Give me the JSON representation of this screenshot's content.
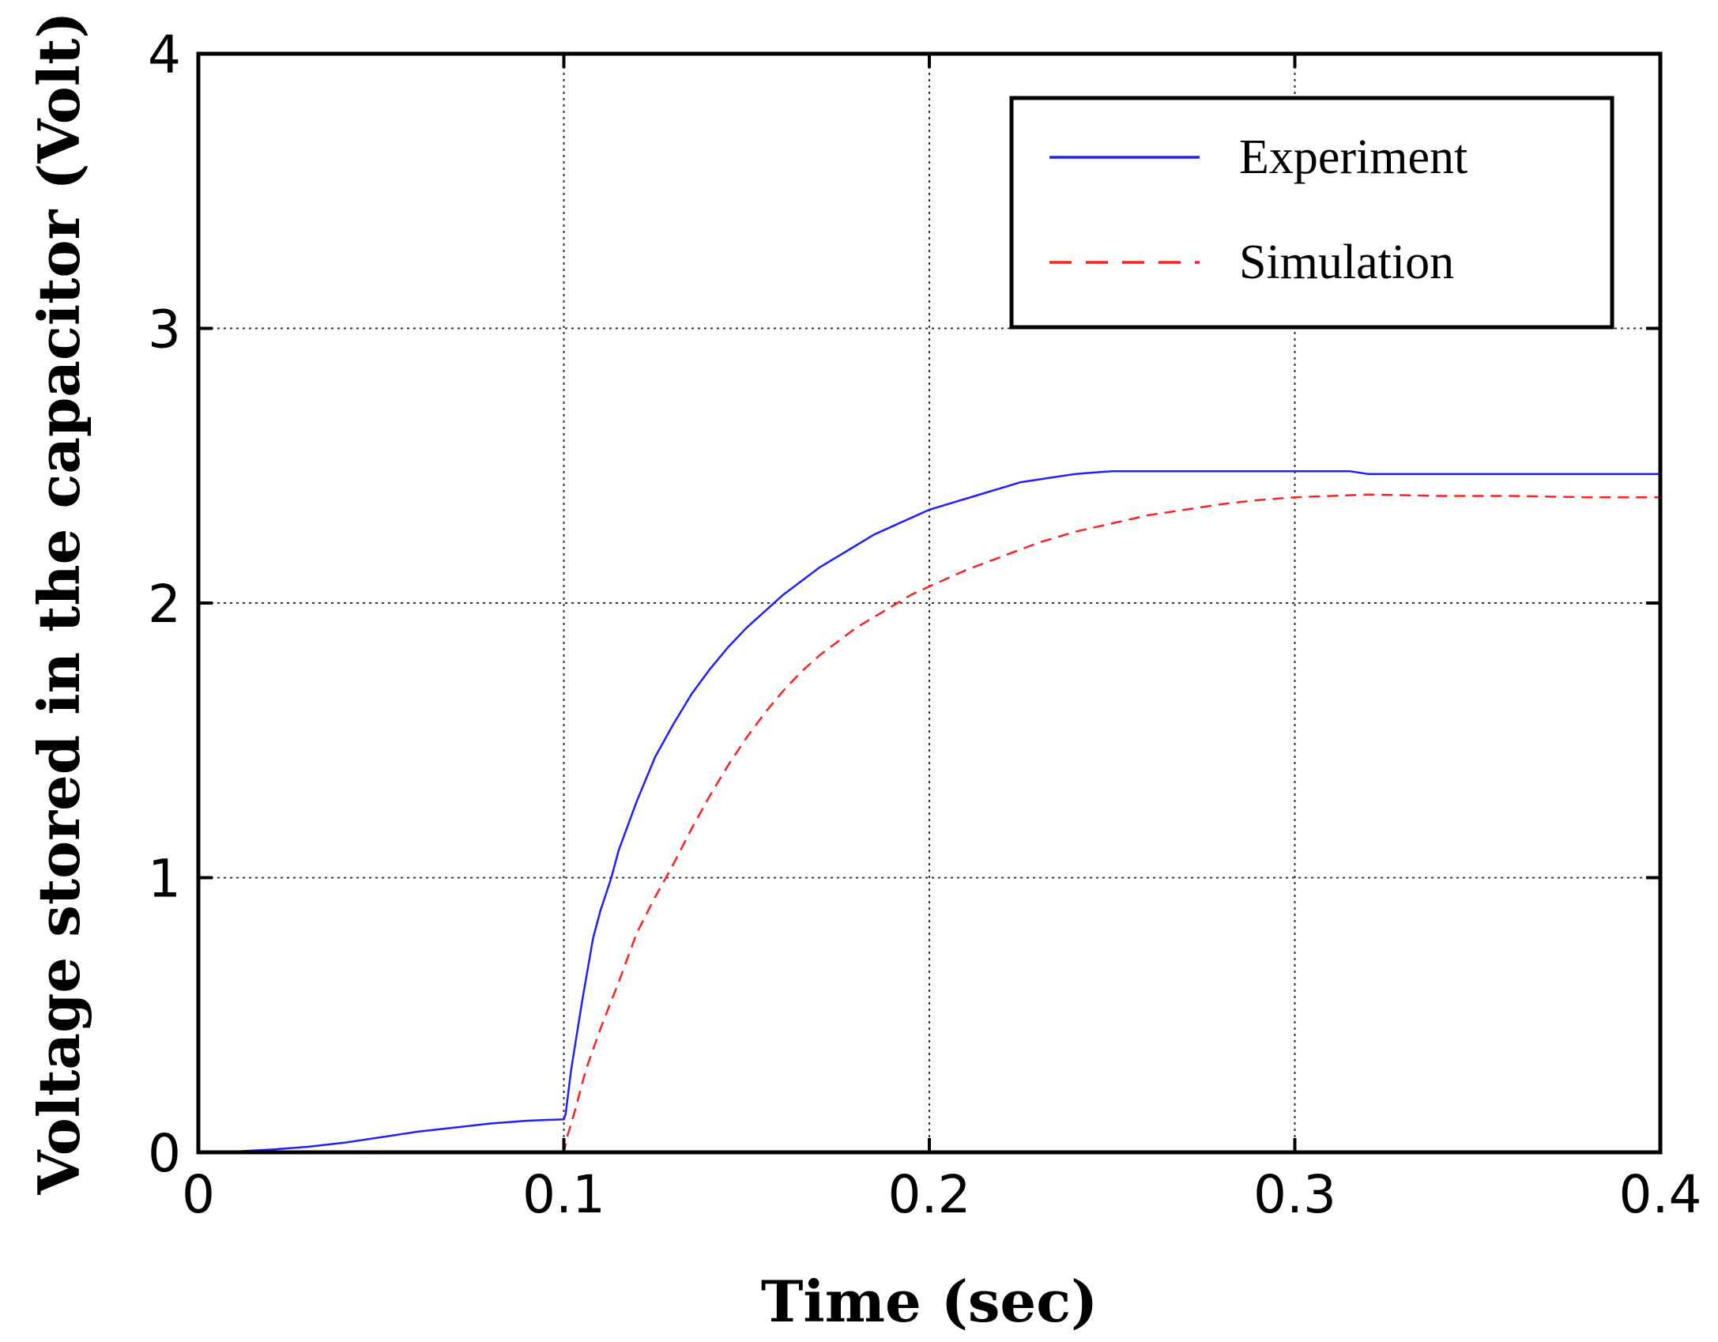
{
  "chart_data": {
    "type": "line",
    "title": "",
    "xlabel": "Time (sec)",
    "ylabel": "Voltage stored in the capacitor (Volt)",
    "xlim": [
      0,
      0.4
    ],
    "ylim": [
      0,
      4
    ],
    "xticks": [
      0,
      0.1,
      0.2,
      0.3,
      0.4
    ],
    "xtick_labels": [
      "0",
      "0.1",
      "0.2",
      "0.3",
      "0.4"
    ],
    "yticks": [
      0,
      1,
      2,
      3,
      4
    ],
    "ytick_labels": [
      "0",
      "1",
      "2",
      "3",
      "4"
    ],
    "grid": true,
    "legend_position": "top-right",
    "series": [
      {
        "name": "Experiment",
        "color": "#1f1fff",
        "style": "solid",
        "x": [
          0,
          0.01,
          0.02,
          0.03,
          0.04,
          0.05,
          0.06,
          0.07,
          0.08,
          0.09,
          0.1,
          0.1005,
          0.102,
          0.105,
          0.108,
          0.11,
          0.113,
          0.115,
          0.12,
          0.125,
          0.13,
          0.135,
          0.14,
          0.145,
          0.15,
          0.155,
          0.16,
          0.165,
          0.17,
          0.175,
          0.18,
          0.185,
          0.19,
          0.195,
          0.2,
          0.205,
          0.21,
          0.215,
          0.22,
          0.225,
          0.23,
          0.235,
          0.24,
          0.245,
          0.25,
          0.26,
          0.27,
          0.28,
          0.29,
          0.3,
          0.31,
          0.315,
          0.32,
          0.35,
          0.4
        ],
        "y": [
          0,
          0.003,
          0.01,
          0.02,
          0.035,
          0.055,
          0.075,
          0.09,
          0.105,
          0.115,
          0.12,
          0.14,
          0.3,
          0.55,
          0.78,
          0.88,
          1.0,
          1.1,
          1.28,
          1.44,
          1.56,
          1.67,
          1.76,
          1.84,
          1.91,
          1.97,
          2.03,
          2.08,
          2.13,
          2.17,
          2.21,
          2.25,
          2.28,
          2.31,
          2.34,
          2.36,
          2.38,
          2.4,
          2.42,
          2.44,
          2.45,
          2.46,
          2.47,
          2.475,
          2.48,
          2.48,
          2.48,
          2.48,
          2.48,
          2.48,
          2.48,
          2.48,
          2.47,
          2.47,
          2.47
        ]
      },
      {
        "name": "Simulation",
        "color": "#ff2020",
        "style": "dashed",
        "x": [
          0,
          0.05,
          0.1,
          0.101,
          0.103,
          0.106,
          0.11,
          0.115,
          0.12,
          0.125,
          0.13,
          0.135,
          0.14,
          0.145,
          0.15,
          0.155,
          0.16,
          0.165,
          0.17,
          0.175,
          0.18,
          0.185,
          0.19,
          0.195,
          0.2,
          0.21,
          0.22,
          0.23,
          0.24,
          0.25,
          0.26,
          0.27,
          0.28,
          0.29,
          0.3,
          0.31,
          0.32,
          0.34,
          0.36,
          0.38,
          0.4
        ],
        "y": [
          0,
          0,
          0,
          0.06,
          0.15,
          0.3,
          0.45,
          0.62,
          0.8,
          0.93,
          1.05,
          1.18,
          1.3,
          1.41,
          1.51,
          1.6,
          1.68,
          1.75,
          1.81,
          1.86,
          1.91,
          1.95,
          1.99,
          2.03,
          2.06,
          2.12,
          2.17,
          2.22,
          2.26,
          2.29,
          2.32,
          2.34,
          2.36,
          2.375,
          2.385,
          2.39,
          2.395,
          2.39,
          2.39,
          2.385,
          2.385
        ]
      }
    ]
  }
}
